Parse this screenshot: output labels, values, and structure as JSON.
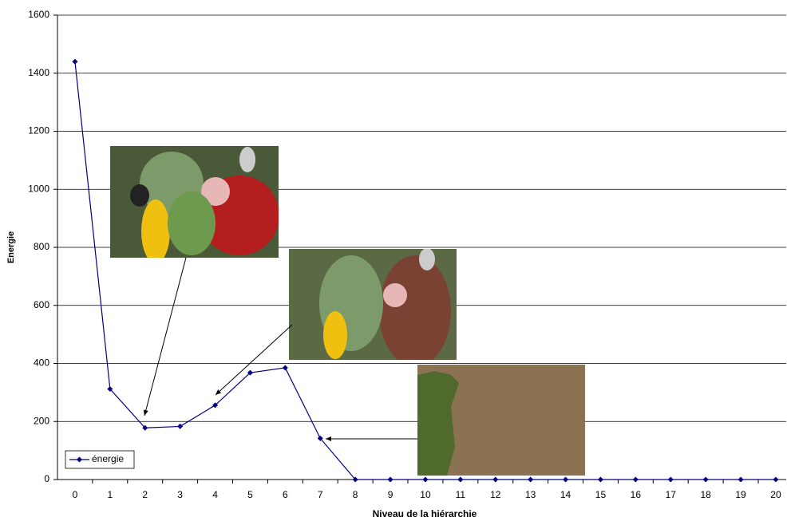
{
  "chart_data": {
    "type": "line",
    "x_label": "Niveau de la hiérarchie",
    "y_label": "Energie",
    "categories": [
      "0",
      "1",
      "2",
      "3",
      "4",
      "5",
      "6",
      "7",
      "8",
      "9",
      "10",
      "11",
      "12",
      "13",
      "14",
      "15",
      "16",
      "17",
      "18",
      "19",
      "20"
    ],
    "series": [
      {
        "name": "énergie",
        "color": "#000080",
        "values": [
          1440,
          312,
          178,
          183,
          256,
          368,
          385,
          142,
          0,
          0,
          0,
          0,
          0,
          0,
          0,
          0,
          0,
          0,
          0,
          0,
          0
        ]
      }
    ],
    "ylim": [
      0,
      1600
    ],
    "yticks": [
      0,
      200,
      400,
      600,
      800,
      1000,
      1200,
      1400,
      1600
    ],
    "grid": true,
    "legend": "lower left"
  }
}
